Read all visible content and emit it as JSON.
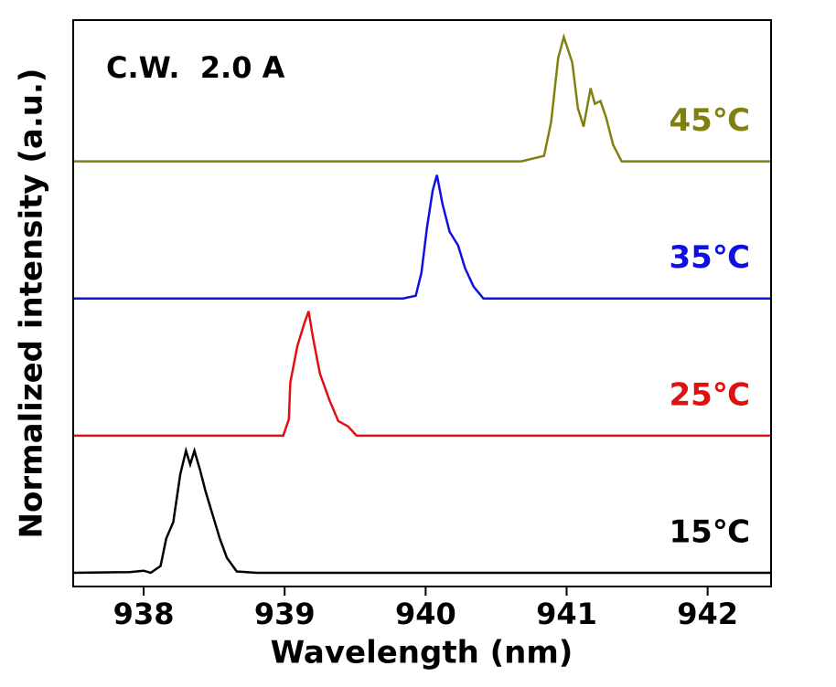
{
  "chart_data": {
    "type": "line",
    "xlabel": "Wavelength (nm)",
    "ylabel": "Normalized intensity (a.u.)",
    "annotation": "C.W.  2.0 A",
    "xlim": [
      937.5,
      942.45
    ],
    "xticks": [
      938,
      939,
      940,
      941,
      942
    ],
    "ylim": [
      -0.1,
      4.03
    ],
    "series": [
      {
        "name": "15℃",
        "color": "#000000",
        "x": [
          937.5,
          937.9,
          938.0,
          938.05,
          938.12,
          938.16,
          938.21,
          938.26,
          938.3,
          938.33,
          938.36,
          938.4,
          938.44,
          938.49,
          938.54,
          938.59,
          938.66,
          938.8,
          942.45
        ],
        "values": [
          0,
          0.005,
          0.015,
          0,
          0.05,
          0.25,
          0.37,
          0.72,
          0.89,
          0.79,
          0.89,
          0.75,
          0.59,
          0.42,
          0.25,
          0.11,
          0.01,
          0,
          0
        ]
      },
      {
        "name": "25℃",
        "color": "#e01010",
        "x": [
          937.5,
          938.99,
          939.03,
          939.04,
          939.09,
          939.14,
          939.17,
          939.2,
          939.25,
          939.32,
          939.38,
          939.45,
          939.51,
          942.45
        ],
        "values": [
          1.0,
          1.0,
          1.12,
          1.387,
          1.653,
          1.82,
          1.907,
          1.72,
          1.453,
          1.253,
          1.107,
          1.067,
          1.0,
          1.0
        ]
      },
      {
        "name": "35℃",
        "color": "#1010e0",
        "x": [
          937.5,
          939.84,
          939.93,
          939.97,
          940.01,
          940.05,
          940.08,
          940.12,
          940.17,
          940.23,
          940.28,
          940.34,
          940.41,
          942.45
        ],
        "values": [
          2.0,
          2.0,
          2.02,
          2.187,
          2.52,
          2.787,
          2.9,
          2.687,
          2.487,
          2.387,
          2.22,
          2.087,
          2.0,
          2.0
        ]
      },
      {
        "name": "45℃",
        "color": "#808010",
        "x": [
          937.5,
          940.68,
          940.84,
          940.89,
          940.94,
          940.98,
          941.04,
          941.08,
          941.12,
          941.17,
          941.2,
          941.24,
          941.28,
          941.33,
          941.39,
          942.45
        ],
        "values": [
          3.0,
          3.0,
          3.04,
          3.287,
          3.753,
          3.907,
          3.72,
          3.387,
          3.253,
          3.533,
          3.42,
          3.44,
          3.32,
          3.12,
          3.0,
          3.0
        ]
      }
    ]
  }
}
